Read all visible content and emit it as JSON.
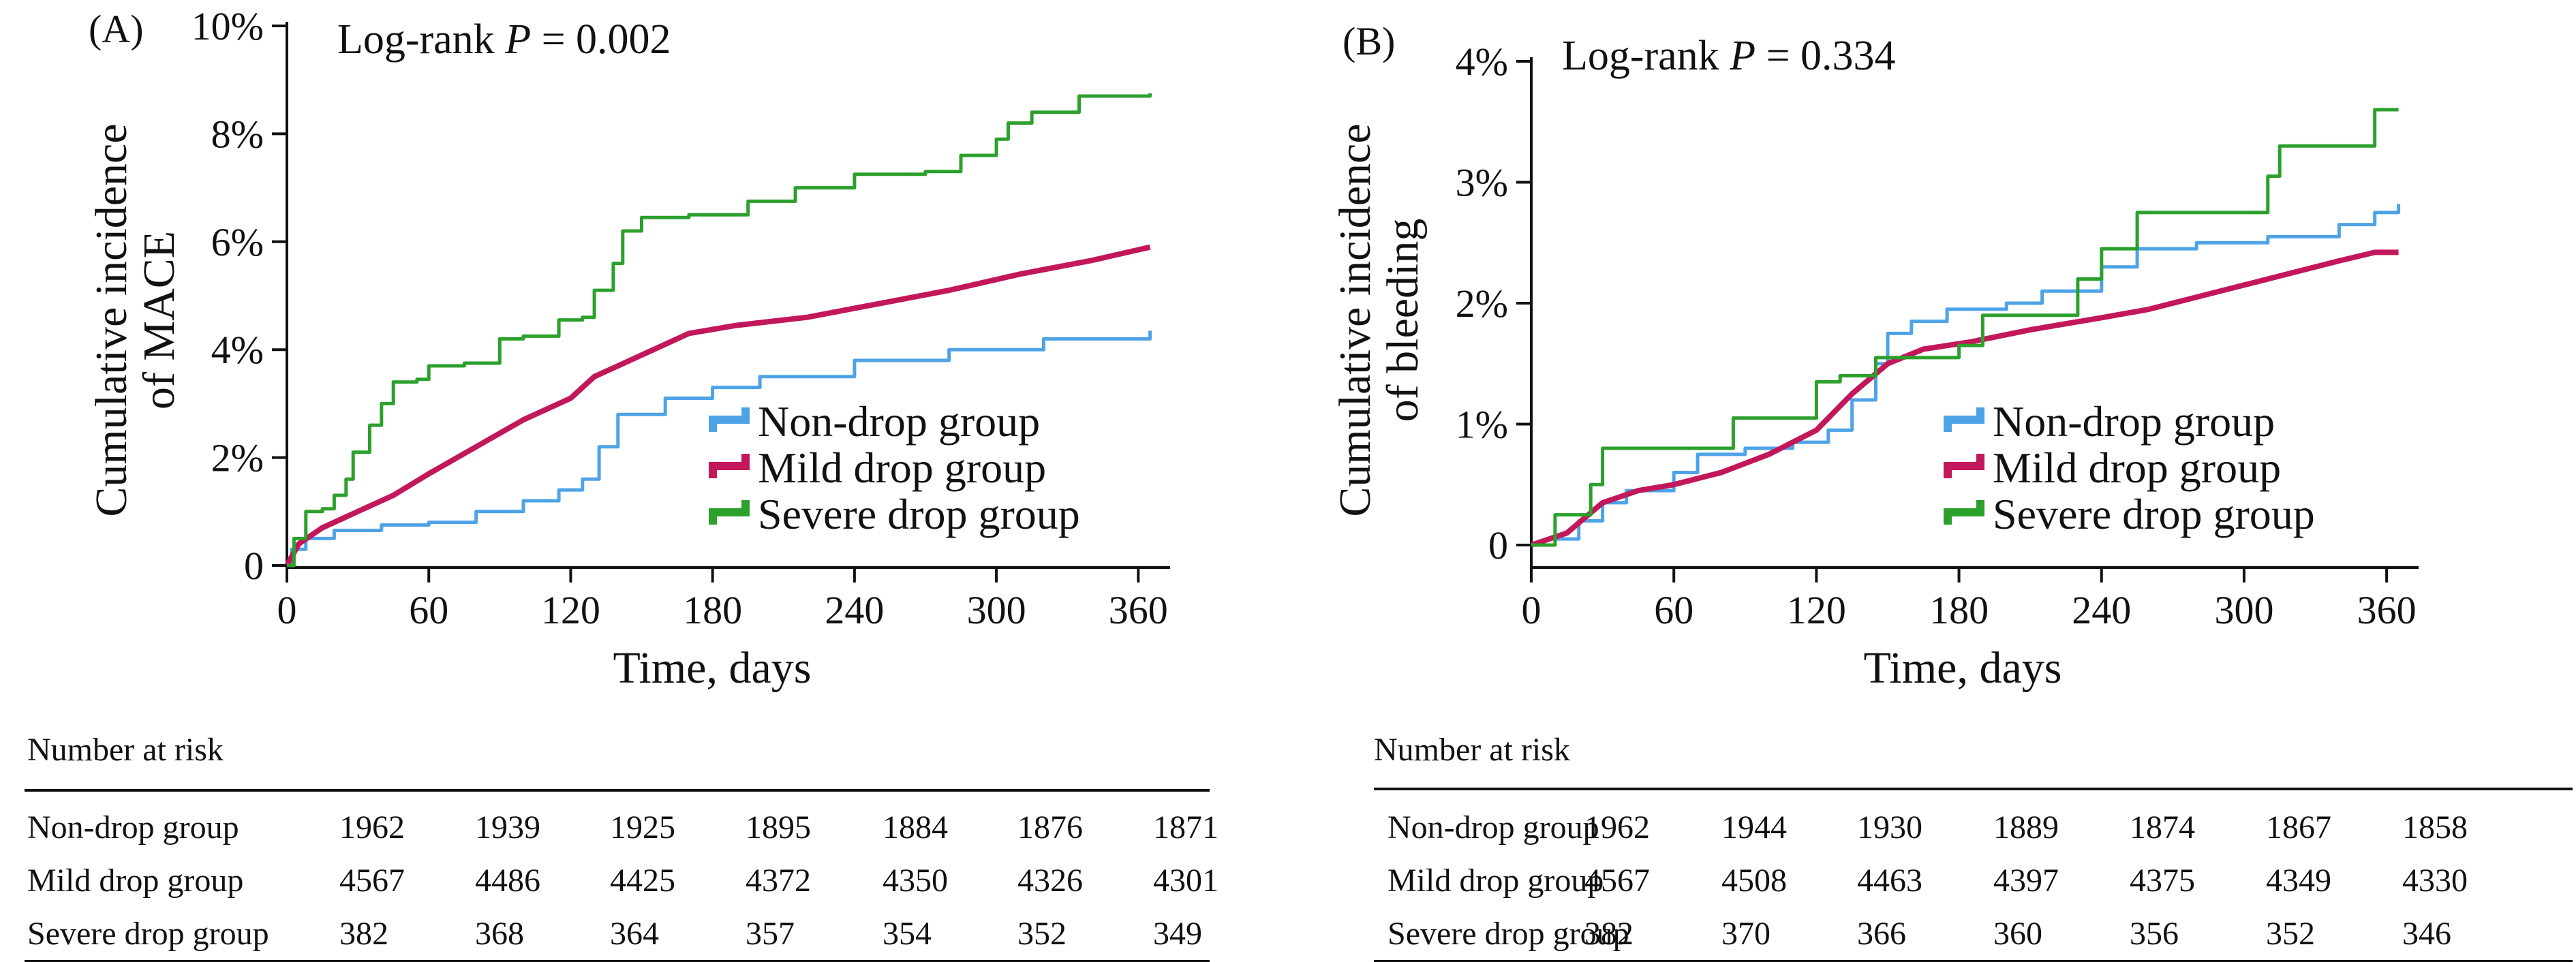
{
  "palette": {
    "nondrop": "#4ea3e6",
    "mild": "#c2185b",
    "severe": "#2ca02c",
    "ink": "#111111"
  },
  "panels": [
    {
      "label": "(A)",
      "pvalue_prefix": "Log-rank ",
      "pvalue_italic": "P",
      "pvalue_suffix": " = 0.002",
      "risk": {
        "title": "Number at risk",
        "rows": [
          {
            "name": "Non-drop group",
            "values": [
              "1962",
              "1939",
              "1925",
              "1895",
              "1884",
              "1876",
              "1871"
            ]
          },
          {
            "name": "Mild drop group",
            "values": [
              "4567",
              "4486",
              "4425",
              "4372",
              "4350",
              "4326",
              "4301"
            ]
          },
          {
            "name": "Severe drop group",
            "values": [
              "382",
              "368",
              "364",
              "357",
              "354",
              "352",
              "349"
            ]
          }
        ]
      }
    },
    {
      "label": "(B)",
      "pvalue_prefix": "Log-rank ",
      "pvalue_italic": "P",
      "pvalue_suffix": " = 0.334",
      "risk": {
        "title": "Number at risk",
        "rows": [
          {
            "name": "Non-drop group",
            "values": [
              "1962",
              "1944",
              "1930",
              "1889",
              "1874",
              "1867",
              "1858"
            ]
          },
          {
            "name": "Mild drop group",
            "values": [
              "4567",
              "4508",
              "4463",
              "4397",
              "4375",
              "4349",
              "4330"
            ]
          },
          {
            "name": "Severe drop group",
            "values": [
              "382",
              "370",
              "366",
              "360",
              "356",
              "352",
              "346"
            ]
          }
        ]
      }
    }
  ],
  "chart_data": [
    {
      "type": "line",
      "title": "",
      "xlabel": "Time, days",
      "ylabel": [
        "Cumulative incidence",
        "of MACE"
      ],
      "xlim": [
        0,
        370
      ],
      "ylim": [
        0,
        10
      ],
      "xticks": [
        0,
        60,
        120,
        180,
        240,
        300,
        360
      ],
      "yticks": [
        0,
        2,
        4,
        6,
        8,
        10
      ],
      "ytick_labels": [
        "0",
        "2%",
        "4%",
        "6%",
        "8%",
        "10%"
      ],
      "grid": false,
      "legend_position": "bottom-right",
      "series": [
        {
          "name": "Non-drop group",
          "color_key": "nondrop",
          "step": true,
          "points": [
            [
              0,
              0
            ],
            [
              2,
              0.3
            ],
            [
              8,
              0.5
            ],
            [
              20,
              0.65
            ],
            [
              40,
              0.75
            ],
            [
              60,
              0.8
            ],
            [
              80,
              1.0
            ],
            [
              100,
              1.2
            ],
            [
              115,
              1.4
            ],
            [
              125,
              1.6
            ],
            [
              132,
              2.2
            ],
            [
              140,
              2.8
            ],
            [
              160,
              3.1
            ],
            [
              180,
              3.3
            ],
            [
              200,
              3.5
            ],
            [
              240,
              3.8
            ],
            [
              280,
              4.0
            ],
            [
              320,
              4.2
            ],
            [
              365,
              4.35
            ]
          ]
        },
        {
          "name": "Mild drop group",
          "color_key": "mild",
          "step": false,
          "points": [
            [
              0,
              0
            ],
            [
              5,
              0.4
            ],
            [
              15,
              0.7
            ],
            [
              30,
              1.0
            ],
            [
              45,
              1.3
            ],
            [
              60,
              1.7
            ],
            [
              80,
              2.2
            ],
            [
              100,
              2.7
            ],
            [
              120,
              3.1
            ],
            [
              130,
              3.5
            ],
            [
              140,
              3.7
            ],
            [
              155,
              4.0
            ],
            [
              170,
              4.3
            ],
            [
              190,
              4.45
            ],
            [
              220,
              4.6
            ],
            [
              250,
              4.85
            ],
            [
              280,
              5.1
            ],
            [
              310,
              5.4
            ],
            [
              340,
              5.65
            ],
            [
              365,
              5.9
            ]
          ]
        },
        {
          "name": "Severe drop group",
          "color_key": "severe",
          "step": true,
          "points": [
            [
              0,
              0
            ],
            [
              3,
              0.5
            ],
            [
              8,
              1.0
            ],
            [
              15,
              1.05
            ],
            [
              20,
              1.3
            ],
            [
              25,
              1.6
            ],
            [
              28,
              2.1
            ],
            [
              35,
              2.6
            ],
            [
              40,
              3.0
            ],
            [
              45,
              3.4
            ],
            [
              55,
              3.45
            ],
            [
              60,
              3.7
            ],
            [
              75,
              3.75
            ],
            [
              90,
              4.2
            ],
            [
              100,
              4.25
            ],
            [
              115,
              4.55
            ],
            [
              125,
              4.6
            ],
            [
              130,
              5.1
            ],
            [
              138,
              5.6
            ],
            [
              142,
              6.2
            ],
            [
              150,
              6.45
            ],
            [
              170,
              6.5
            ],
            [
              195,
              6.75
            ],
            [
              215,
              7.0
            ],
            [
              240,
              7.25
            ],
            [
              270,
              7.3
            ],
            [
              285,
              7.6
            ],
            [
              300,
              7.9
            ],
            [
              305,
              8.2
            ],
            [
              315,
              8.4
            ],
            [
              335,
              8.7
            ],
            [
              365,
              8.75
            ]
          ]
        }
      ]
    },
    {
      "type": "line",
      "title": "",
      "xlabel": "Time, days",
      "ylabel": [
        "Cumulative incidence",
        "of bleeding"
      ],
      "xlim": [
        0,
        370
      ],
      "ylim": [
        0,
        4
      ],
      "xticks": [
        0,
        60,
        120,
        180,
        240,
        300,
        360
      ],
      "yticks": [
        0,
        1,
        2,
        3,
        4
      ],
      "ytick_labels": [
        "0",
        "1%",
        "2%",
        "3%",
        "4%"
      ],
      "grid": false,
      "legend_position": "bottom-right",
      "series": [
        {
          "name": "Non-drop group",
          "color_key": "nondrop",
          "step": true,
          "points": [
            [
              0,
              0
            ],
            [
              10,
              0.05
            ],
            [
              20,
              0.2
            ],
            [
              30,
              0.35
            ],
            [
              40,
              0.45
            ],
            [
              60,
              0.6
            ],
            [
              70,
              0.75
            ],
            [
              90,
              0.8
            ],
            [
              110,
              0.85
            ],
            [
              125,
              0.95
            ],
            [
              135,
              1.2
            ],
            [
              145,
              1.5
            ],
            [
              150,
              1.75
            ],
            [
              160,
              1.85
            ],
            [
              175,
              1.95
            ],
            [
              200,
              2.0
            ],
            [
              215,
              2.1
            ],
            [
              240,
              2.3
            ],
            [
              255,
              2.45
            ],
            [
              280,
              2.5
            ],
            [
              310,
              2.55
            ],
            [
              340,
              2.65
            ],
            [
              355,
              2.75
            ],
            [
              365,
              2.82
            ]
          ]
        },
        {
          "name": "Mild drop group",
          "color_key": "mild",
          "step": false,
          "points": [
            [
              0,
              0
            ],
            [
              15,
              0.1
            ],
            [
              30,
              0.35
            ],
            [
              45,
              0.45
            ],
            [
              60,
              0.5
            ],
            [
              80,
              0.6
            ],
            [
              100,
              0.75
            ],
            [
              120,
              0.95
            ],
            [
              135,
              1.25
            ],
            [
              150,
              1.5
            ],
            [
              165,
              1.62
            ],
            [
              185,
              1.68
            ],
            [
              210,
              1.78
            ],
            [
              240,
              1.88
            ],
            [
              260,
              1.95
            ],
            [
              280,
              2.05
            ],
            [
              300,
              2.15
            ],
            [
              320,
              2.25
            ],
            [
              340,
              2.35
            ],
            [
              355,
              2.42
            ],
            [
              365,
              2.42
            ]
          ]
        },
        {
          "name": "Severe drop group",
          "color_key": "severe",
          "step": true,
          "points": [
            [
              0,
              0
            ],
            [
              10,
              0.25
            ],
            [
              25,
              0.5
            ],
            [
              30,
              0.8
            ],
            [
              85,
              1.05
            ],
            [
              120,
              1.35
            ],
            [
              130,
              1.4
            ],
            [
              145,
              1.55
            ],
            [
              180,
              1.65
            ],
            [
              190,
              1.9
            ],
            [
              230,
              2.2
            ],
            [
              240,
              2.45
            ],
            [
              255,
              2.75
            ],
            [
              310,
              3.05
            ],
            [
              315,
              3.3
            ],
            [
              355,
              3.6
            ],
            [
              365,
              3.6
            ]
          ]
        }
      ]
    }
  ]
}
